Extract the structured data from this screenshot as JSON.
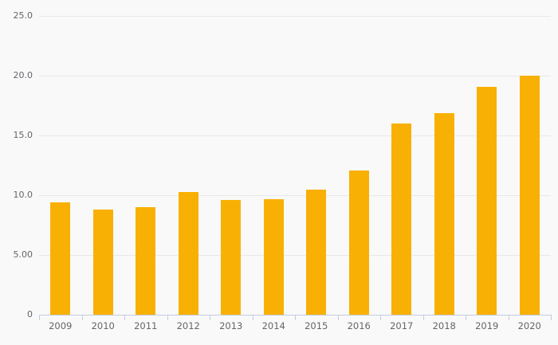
{
  "chart": {
    "background_color": "#f9f9f9",
    "bar_color": "#f9b004",
    "gridline_color": "#e8e8e8",
    "axis_color": "#c3cce0",
    "label_color": "#65656a"
  },
  "chart_data": {
    "type": "bar",
    "title": "",
    "xlabel": "",
    "ylabel": "",
    "categories": [
      "2009",
      "2010",
      "2011",
      "2012",
      "2013",
      "2014",
      "2015",
      "2016",
      "2017",
      "2018",
      "2019",
      "2020"
    ],
    "values": [
      9.4,
      8.8,
      9.0,
      10.3,
      9.6,
      9.7,
      10.5,
      12.1,
      16.0,
      16.9,
      19.1,
      20.0
    ],
    "ylim": [
      0,
      25
    ],
    "yticks": [
      0,
      5,
      10,
      15,
      20,
      25
    ],
    "ytick_labels": [
      "0",
      "5.00",
      "10.0",
      "15.0",
      "20.0",
      "25.0"
    ],
    "grid": "horizontal",
    "legend": "none"
  }
}
